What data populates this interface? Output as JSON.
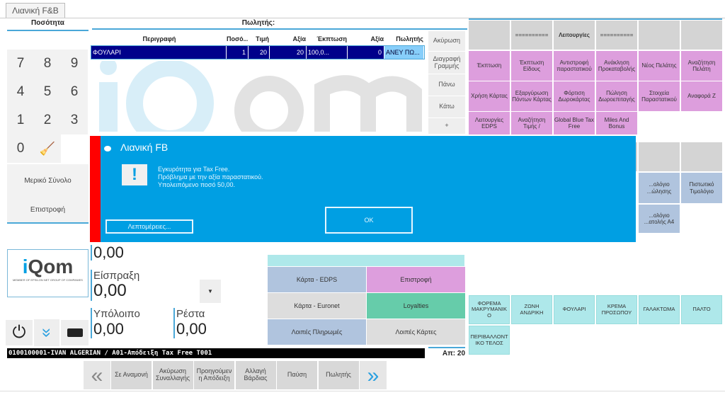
{
  "tab": "Λιανική F&B",
  "left": {
    "qty_header": "Ποσότητα",
    "keys": [
      "7",
      "8",
      "9",
      "4",
      "5",
      "6",
      "1",
      "2",
      "3",
      "0"
    ],
    "partial_total": "Μερικό Σύνολο",
    "return": "Επιστροφή"
  },
  "table": {
    "header": "Πωλητής:",
    "columns": [
      "Περιγραφή",
      "Ποσό...",
      "Τιμή",
      "Αξία",
      "Έκπτωση",
      "Αξία",
      "Πωλητής"
    ],
    "rows": [
      [
        "ΦΟΥΛΑΡΙ",
        "1",
        "20",
        "20",
        "100,0...",
        "0",
        "ΑΝΕΥ ΠΩ..."
      ]
    ]
  },
  "side_buttons": [
    "Ακύρωση",
    "Διαγραφή Γραμμής",
    "Πάνω",
    "Κάτω",
    "+"
  ],
  "functions": {
    "row0": [
      "",
      "==========",
      "Λειτουργίες",
      "==========",
      "",
      ""
    ],
    "row1": [
      "Έκπτωση",
      "Έκπτωση Είδους",
      "Αντιστροφή παραστατικού",
      "Ανάκληση Προκαταβολής",
      "Νέος Πελάτης",
      "Αναζήτηση Πελάτη"
    ],
    "row2": [
      "Χρήση Κάρτας",
      "Εξαργύρωση Πόντων Κάρτας",
      "Φόρτιση Δωροκάρτας",
      "Πώληση Δωροεπιταγής",
      "Στοιχεία Παραστατικού",
      "Αναφορά Z"
    ],
    "row3": [
      "Λειτουργίες EDPS",
      "Αναζήτηση Τιμής /",
      "Global Blue Tax Free",
      "Miles And Bonus"
    ],
    "row5": [
      "...ολόγιο ...ώλησης",
      "Πιστωτικό Τιμολόγιο"
    ],
    "row6": [
      "...ολόγιο ...ατολής Α4"
    ]
  },
  "dialog": {
    "title": "Λιανική FB",
    "lines": [
      "Εγκυρότητα για Tax Free.",
      "Πρόβλημα με την αξία παραστατικού.",
      "Υπολειπόμενο ποσό 50,00."
    ],
    "details": "Λεπτομέρειες...",
    "ok": "OK",
    "accent": "#009fe3",
    "strip": "#ff0000"
  },
  "amounts": {
    "top_partial": "0,00",
    "receipt_label": "Είσπραξη",
    "receipt": "0,00",
    "balance_label": "Υπόλοιπο",
    "balance": "0,00",
    "change_label": "Ρέστα",
    "change": "0,00"
  },
  "logo": {
    "name": "iQom",
    "sub": "MEMBER OF EPSILON NET GROUP OF COMPANIES"
  },
  "payments": [
    "Κάρτα - EDPS",
    "Επιστροφή",
    "Κάρτα - Euronet",
    "Loyalties",
    "Λοιπές Πληρωμές",
    "Λοιπές Κάρτες"
  ],
  "products": [
    "ΦΟΡΕΜΑ ΜΑΚΡΥΜΑΝΙΚΟ",
    "ΖΩΝΗ ΑΝΔΡΙΚΗ",
    "ΦΟΥΛΑΡΙ",
    "ΚΡΕΜΑ ΠΡΟΣΩΠΟΥ",
    "ΓΑΛΑΚΤΩΜΑ",
    "ΠΑΛΤΟ",
    "ΠΕΡΙΒΑΛΛΟΝΤΙΚΟ ΤΕΛΟΣ"
  ],
  "status": "0100100001-IVAN ALGERIAN / A01-Απόδειξη Tax Free T001",
  "count": "Απ: 20",
  "toolbar": [
    "Σε Αναμονή",
    "Ακύρωση Συναλλαγής",
    "Προηγούμενη Απόδειξη",
    "Αλλαγή Βάρδιας",
    "Παύση",
    "Πωλητής"
  ]
}
